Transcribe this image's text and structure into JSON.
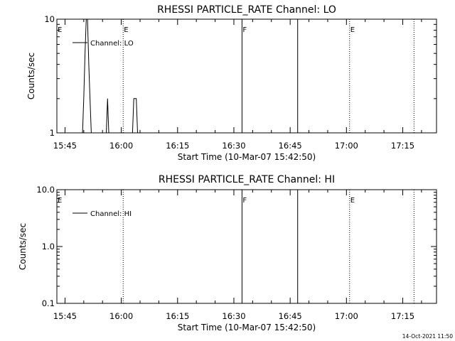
{
  "chart_data": [
    {
      "type": "line",
      "title": "RHESSI PARTICLE_RATE Channel: LO",
      "xlabel": "Start Time (10-Mar-07 15:42:50)",
      "ylabel": "Counts/sec",
      "yscale": "log",
      "ylim": [
        1,
        10
      ],
      "xlim": [
        "15:42:50",
        "17:24:00"
      ],
      "y_tick_labels": [
        "1",
        "10"
      ],
      "x_tick_labels": [
        "15:45",
        "16:00",
        "16:15",
        "16:30",
        "16:45",
        "17:00",
        "17:15"
      ],
      "legend": {
        "label": "Channel: LO",
        "position": "top-left"
      },
      "grid": false,
      "series": [
        {
          "name": "Channel: LO",
          "x": [
            "15:49:40",
            "15:50:00",
            "15:50:20",
            "15:50:40",
            "15:51:00",
            "15:51:20",
            "15:51:40",
            "15:52:00",
            "15:56:00",
            "15:56:20",
            "15:56:40",
            "16:03:00",
            "16:03:20",
            "16:03:40",
            "16:04:00",
            "16:04:20"
          ],
          "y": [
            1,
            2,
            5,
            10,
            10,
            4,
            2,
            1,
            1,
            2,
            1,
            1,
            2,
            2,
            2,
            1
          ]
        }
      ],
      "vertical_lines": [
        {
          "x": "16:00:30",
          "style": "dotted",
          "label": "E"
        },
        {
          "x": "16:32:10",
          "style": "solid",
          "label": "F"
        },
        {
          "x": "16:47:00",
          "style": "solid",
          "label": ""
        },
        {
          "x": "17:00:50",
          "style": "dotted",
          "label": "E"
        },
        {
          "x": "17:18:00",
          "style": "dotted",
          "label": ""
        }
      ],
      "left_edge_label": "E"
    },
    {
      "type": "line",
      "title": "RHESSI PARTICLE_RATE Channel: HI",
      "xlabel": "Start Time (10-Mar-07 15:42:50)",
      "ylabel": "Counts/sec",
      "yscale": "log",
      "ylim": [
        0.1,
        10
      ],
      "xlim": [
        "15:42:50",
        "17:24:00"
      ],
      "y_tick_labels": [
        "0.1",
        "1.0",
        "10.0"
      ],
      "x_tick_labels": [
        "15:45",
        "16:00",
        "16:15",
        "16:30",
        "16:45",
        "17:00",
        "17:15"
      ],
      "legend": {
        "label": "Channel: HI",
        "position": "top-left"
      },
      "grid": false,
      "series": [
        {
          "name": "Channel: HI",
          "x": [],
          "y": []
        }
      ],
      "vertical_lines": [
        {
          "x": "16:00:30",
          "style": "dotted",
          "label": ""
        },
        {
          "x": "16:32:10",
          "style": "solid",
          "label": "F"
        },
        {
          "x": "16:47:00",
          "style": "solid",
          "label": ""
        },
        {
          "x": "17:00:50",
          "style": "dotted",
          "label": "E"
        },
        {
          "x": "17:18:00",
          "style": "dotted",
          "label": ""
        }
      ],
      "left_edge_label": "E"
    }
  ],
  "timestamp": "14-Oct-2021 11:50"
}
